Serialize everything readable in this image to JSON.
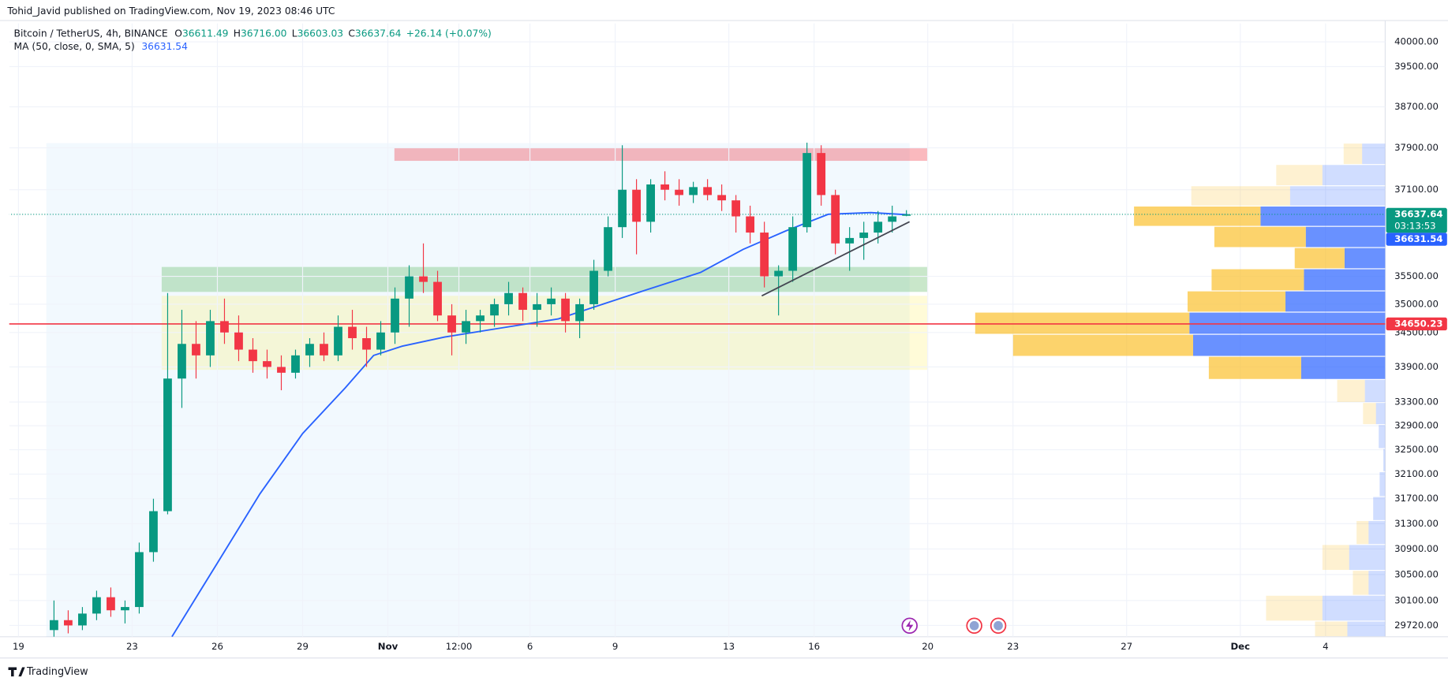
{
  "header": {
    "author_line": "Tohid_Javid published on TradingView.com, Nov 19, 2023 08:46 UTC",
    "symbol": "Bitcoin / TetherUS, 4h, BINANCE",
    "ohlc": [
      {
        "label": "O",
        "value": "36611.49"
      },
      {
        "label": "H",
        "value": "36716.00"
      },
      {
        "label": "L",
        "value": "36603.03"
      },
      {
        "label": "C",
        "value": "36637.64"
      }
    ],
    "change": "+26.14 (+0.07%)",
    "indicator": "MA (50, close, 0, SMA, 5)"
  },
  "chart_data": {
    "type": "candlestick",
    "x": [
      1.25,
      1.75,
      2.25,
      2.75,
      3.25,
      3.75,
      4.25,
      4.75,
      5.25,
      5.75,
      6.25,
      6.75,
      7.25,
      7.75,
      8.25,
      8.75,
      9.25,
      9.75,
      10.25,
      10.75,
      11.25,
      11.75,
      12.25,
      12.75,
      13.25,
      13.75,
      14.25,
      14.75,
      15.25,
      15.75,
      16.25,
      16.75,
      17.25,
      17.75,
      18.25,
      18.75,
      19.25,
      19.75,
      20.25,
      20.75,
      21.25,
      21.75,
      22.25,
      22.75,
      23.25,
      23.75,
      24.25,
      24.75,
      25.25,
      25.75,
      26.25,
      26.75,
      27.25,
      27.75,
      28.25,
      28.75,
      29.25,
      29.75,
      30.25,
      30.75,
      31.25
    ],
    "open": [
      29650,
      29800,
      29720,
      29900,
      30150,
      29950,
      30000,
      30850,
      31500,
      33700,
      34300,
      34100,
      34700,
      34500,
      34200,
      34000,
      33900,
      33800,
      34100,
      34300,
      34100,
      34600,
      34400,
      34200,
      34500,
      35100,
      35500,
      35400,
      34800,
      34500,
      34700,
      34800,
      35000,
      35200,
      34900,
      35000,
      35100,
      34700,
      35000,
      35600,
      36400,
      37100,
      36500,
      37200,
      37100,
      37000,
      37150,
      37000,
      36900,
      36600,
      36300,
      35500,
      35600,
      36400,
      37800,
      37000,
      36100,
      36200,
      36300,
      36500,
      36611.49
    ],
    "high": [
      30100,
      29950,
      30000,
      30250,
      30300,
      30100,
      31000,
      31700,
      35200,
      34900,
      34700,
      34900,
      35100,
      34800,
      34400,
      34200,
      34100,
      34200,
      34400,
      34500,
      34800,
      34900,
      34600,
      34700,
      35300,
      35700,
      36100,
      35600,
      35000,
      34900,
      34900,
      35100,
      35400,
      35300,
      35200,
      35300,
      35200,
      35100,
      35800,
      36600,
      37950,
      37300,
      37300,
      37450,
      37300,
      37250,
      37300,
      37200,
      37000,
      36800,
      36500,
      35700,
      36600,
      38000,
      37950,
      37100,
      36400,
      36500,
      36700,
      36800,
      36716
    ],
    "low": [
      29550,
      29600,
      29650,
      29800,
      29850,
      29750,
      29900,
      30700,
      31450,
      33200,
      33700,
      33900,
      34300,
      34000,
      33800,
      33700,
      33500,
      33700,
      33900,
      34000,
      34000,
      34200,
      33900,
      34100,
      34300,
      34600,
      35200,
      34700,
      34100,
      34300,
      34500,
      34600,
      34800,
      34700,
      34600,
      34800,
      34500,
      34400,
      34900,
      35500,
      36200,
      35900,
      36300,
      36900,
      36800,
      36850,
      36900,
      36700,
      36300,
      36100,
      35300,
      34800,
      35400,
      36300,
      36800,
      35900,
      35600,
      35800,
      36100,
      36300,
      36603.03
    ],
    "close": [
      29800,
      29720,
      29900,
      30150,
      29950,
      30000,
      30850,
      31500,
      33700,
      34300,
      34100,
      34700,
      34500,
      34200,
      34000,
      33900,
      33800,
      34100,
      34300,
      34100,
      34600,
      34400,
      34200,
      34500,
      35100,
      35500,
      35400,
      34800,
      34500,
      34700,
      34800,
      35000,
      35200,
      34900,
      35000,
      35100,
      34700,
      35000,
      35600,
      36400,
      37100,
      36500,
      37200,
      37100,
      37000,
      37150,
      37000,
      36900,
      36600,
      36300,
      35500,
      35600,
      36400,
      37800,
      37000,
      36100,
      36200,
      36300,
      36500,
      36600,
      36637.64
    ],
    "up_color": "#089981",
    "down_color": "#f23645",
    "ma": {
      "color": "#2962ff",
      "x": [
        5.4,
        7,
        8.5,
        10,
        11.5,
        12.5,
        13.5,
        15,
        17,
        19,
        20.5,
        22,
        24,
        25.5,
        27,
        28.5,
        30,
        31.3
      ],
      "values": [
        29550,
        30680,
        31780,
        32770,
        33540,
        34100,
        34260,
        34420,
        34580,
        34740,
        34990,
        35240,
        35570,
        35990,
        36330,
        36640,
        36670,
        36631.54
      ]
    },
    "ma_last": 36631.54,
    "last_price": 36637.64,
    "countdown": "03:13:53",
    "level": 34650.23,
    "level_color": "#f23645",
    "zones": [
      {
        "x": [
          0.98,
          31.36
        ],
        "y": [
          29549,
          37990
        ],
        "color": "rgba(33,150,243,0.06)"
      },
      {
        "x": [
          13.23,
          31.98
        ],
        "y": [
          37650,
          37900
        ],
        "color": "rgba(242,54,69,0.35)"
      },
      {
        "x": [
          5.04,
          31.98
        ],
        "y": [
          35220,
          35670
        ],
        "color": "rgba(76,175,80,0.3)"
      },
      {
        "x": [
          5.04,
          31.98
        ],
        "y": [
          33850,
          35150
        ],
        "color": "rgba(255,235,59,0.2)"
      }
    ],
    "trendline": {
      "x": [
        26.16,
        31.36
      ],
      "values": [
        35150,
        36500
      ],
      "color": "#434651"
    },
    "volume_profile": {
      "bins": [
        37990,
        37580,
        37175,
        36793,
        36415,
        36024,
        35637,
        35238,
        34859,
        34468,
        34083,
        33685,
        33292,
        32919,
        32520,
        32140,
        31735,
        31350,
        30970,
        30565,
        30180,
        29786,
        29549
      ],
      "up": [
        25,
        68,
        103,
        135,
        86,
        44,
        88,
        108,
        212,
        208,
        91,
        22,
        10,
        7,
        2,
        6,
        13,
        18,
        39,
        18,
        68,
        41
      ],
      "down": [
        20,
        50,
        107,
        137,
        99,
        54,
        100,
        106,
        232,
        195,
        100,
        30,
        14,
        0,
        0,
        0,
        0,
        13,
        29,
        17,
        61,
        35
      ],
      "value_area": [
        36793,
        33685
      ],
      "up_color": "#2962ff",
      "down_color": "#fbc02d"
    },
    "xlim": [
      -0.325,
      48.1
    ],
    "xticks": [
      {
        "value": 0,
        "label": "19"
      },
      {
        "value": 4,
        "label": "23"
      },
      {
        "value": 7,
        "label": "26"
      },
      {
        "value": 10,
        "label": "29"
      },
      {
        "value": 13,
        "label": "Nov"
      },
      {
        "value": 15.5,
        "label": "12:00"
      },
      {
        "value": 18,
        "label": "6"
      },
      {
        "value": 21,
        "label": "9"
      },
      {
        "value": 25,
        "label": "13"
      },
      {
        "value": 28,
        "label": "16"
      },
      {
        "value": 32,
        "label": "20"
      },
      {
        "value": 35,
        "label": "23"
      },
      {
        "value": 39,
        "label": "27"
      },
      {
        "value": 43,
        "label": "Dec"
      },
      {
        "value": 46,
        "label": "4"
      }
    ],
    "ylim": [
      29549,
      40380
    ],
    "log_y": true,
    "yticks": [
      {
        "value": 40000,
        "label": "40000.00"
      },
      {
        "value": 39500,
        "label": "39500.00"
      },
      {
        "value": 38700,
        "label": "38700.00"
      },
      {
        "value": 37900,
        "label": "37900.00"
      },
      {
        "value": 37100,
        "label": "37100.00"
      },
      {
        "value": 35500,
        "label": "35500.00"
      },
      {
        "value": 35000,
        "label": "35000.00"
      },
      {
        "value": 34500,
        "label": "34500.00"
      },
      {
        "value": 33900,
        "label": "33900.00"
      },
      {
        "value": 33300,
        "label": "33300.00"
      },
      {
        "value": 32900,
        "label": "32900.00"
      },
      {
        "value": 32500,
        "label": "32500.00"
      },
      {
        "value": 32100,
        "label": "32100.00"
      },
      {
        "value": 31700,
        "label": "31700.00"
      },
      {
        "value": 31300,
        "label": "31300.00"
      },
      {
        "value": 30900,
        "label": "30900.00"
      },
      {
        "value": 30500,
        "label": "30500.00"
      },
      {
        "value": 30100,
        "label": "30100.00"
      },
      {
        "value": 29720,
        "label": "29720.00"
      }
    ],
    "grid": true
  },
  "footer": {
    "brand": "TradingView"
  }
}
